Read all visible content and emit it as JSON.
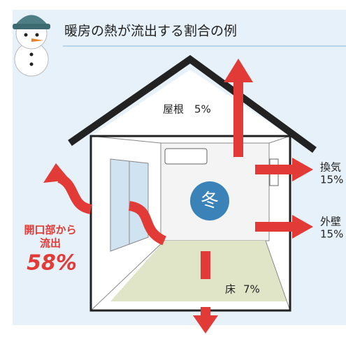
{
  "title": "暖房の熱が流出する割合の例",
  "center": "冬",
  "labels": {
    "roof": {
      "name": "屋根",
      "value": "5%"
    },
    "ventilation": {
      "name": "換気",
      "value": "15%"
    },
    "wall": {
      "name": "外壁",
      "value": "15%"
    },
    "floor": {
      "name": "床",
      "value": "7%"
    },
    "openings": {
      "line1": "開口部から",
      "line2": "流出",
      "value": "58%"
    }
  }
}
